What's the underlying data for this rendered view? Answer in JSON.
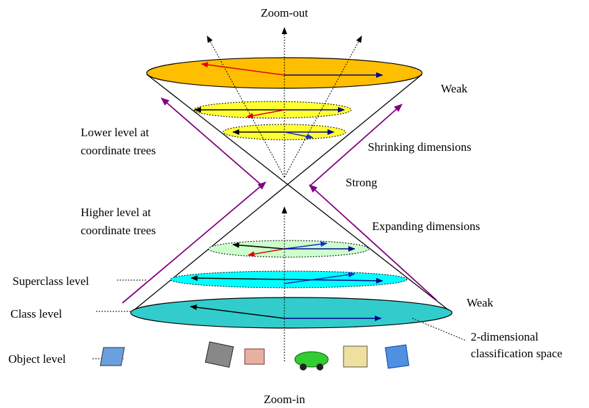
{
  "top_label": "Zoom-out",
  "bottom_label": "Zoom-in",
  "weak_top": "Weak",
  "weak_bottom": "Weak",
  "strong": "Strong",
  "lower_level": [
    "Lower level at",
    "coordinate trees"
  ],
  "higher_level": [
    "Higher level at",
    "coordinate trees"
  ],
  "shrinking": "Shrinking dimensions",
  "expanding": "Expanding dimensions",
  "superclass_level": "Superclass level",
  "class_level": "Class level",
  "object_level": "Object level",
  "space_label": [
    "2-dimensional",
    "classification space"
  ]
}
